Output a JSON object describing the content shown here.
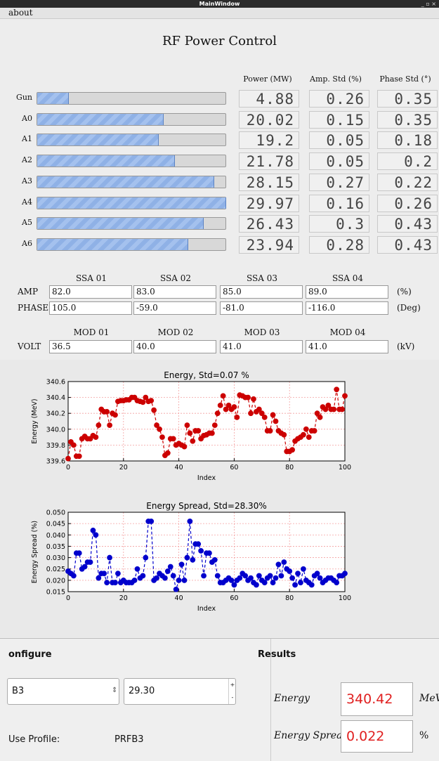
{
  "window": {
    "title": "MainWindow",
    "menu": [
      "about"
    ]
  },
  "header": {
    "title": "RF Power Control"
  },
  "power_table": {
    "columns": [
      "Power (MW)",
      "Amp. Std (%)",
      "Phase Std (°)"
    ],
    "progress_range": [
      0,
      30
    ],
    "rows": [
      {
        "name": "Gun",
        "power": 4.88,
        "amp_std": 0.26,
        "phase_std": 0.35
      },
      {
        "name": "A0",
        "power": 20.02,
        "amp_std": 0.15,
        "phase_std": 0.35
      },
      {
        "name": "A1",
        "power": 19.2,
        "amp_std": 0.05,
        "phase_std": 0.18
      },
      {
        "name": "A2",
        "power": 21.78,
        "amp_std": 0.05,
        "phase_std": 0.2
      },
      {
        "name": "A3",
        "power": 28.15,
        "amp_std": 0.27,
        "phase_std": 0.22
      },
      {
        "name": "A4",
        "power": 29.97,
        "amp_std": 0.16,
        "phase_std": 0.26
      },
      {
        "name": "A5",
        "power": 26.43,
        "amp_std": 0.3,
        "phase_std": 0.43
      },
      {
        "name": "A6",
        "power": 23.94,
        "amp_std": 0.28,
        "phase_std": 0.43
      }
    ]
  },
  "ssa": {
    "columns": [
      "SSA 01",
      "SSA 02",
      "SSA 03",
      "SSA 04"
    ],
    "rows": [
      {
        "label": "AMP",
        "values": [
          "82.0",
          "83.0",
          "85.0",
          "89.0"
        ],
        "unit": "(%)"
      },
      {
        "label": "PHASE",
        "values": [
          "105.0",
          "-59.0",
          "-81.0",
          "-116.0"
        ],
        "unit": "(Deg)"
      }
    ]
  },
  "mod": {
    "columns": [
      "MOD 01",
      "MOD 02",
      "MOD 03",
      "MOD 04"
    ],
    "rows": [
      {
        "label": "VOLT",
        "values": [
          "36.5",
          "40.0",
          "41.0",
          "41.0"
        ],
        "unit": "(kV)"
      }
    ]
  },
  "chart_data": [
    {
      "type": "line",
      "title": "Energy, Std=0.07 %",
      "xlabel": "Index",
      "ylabel": "Energy (MeV)",
      "color": "#cc0000",
      "grid": true,
      "xlim": [
        0,
        100
      ],
      "xticks": [
        0,
        20,
        40,
        60,
        80,
        100
      ],
      "ylim": [
        339.6,
        340.6
      ],
      "yticks": [
        339.6,
        339.8,
        {
          "value": 340.0,
          "label": "340.0"
        },
        340.2,
        340.4,
        340.6
      ],
      "values": [
        339.63,
        339.84,
        339.8,
        339.66,
        339.66,
        339.88,
        339.91,
        339.88,
        339.88,
        339.92,
        339.9,
        340.05,
        340.25,
        340.22,
        340.22,
        340.05,
        340.2,
        340.18,
        340.35,
        340.36,
        340.36,
        340.37,
        340.37,
        340.4,
        340.4,
        340.36,
        340.35,
        340.34,
        340.4,
        340.35,
        340.36,
        340.24,
        340.05,
        340.0,
        339.9,
        339.67,
        339.7,
        339.88,
        339.88,
        339.8,
        339.82,
        339.8,
        339.78,
        340.05,
        339.95,
        339.85,
        339.98,
        339.98,
        339.88,
        339.92,
        339.93,
        339.95,
        339.95,
        340.05,
        340.2,
        340.3,
        340.42,
        340.25,
        340.3,
        340.25,
        340.28,
        340.15,
        340.43,
        340.42,
        340.4,
        340.4,
        340.2,
        340.38,
        340.22,
        340.25,
        340.2,
        340.15,
        339.98,
        339.98,
        340.18,
        340.1,
        339.98,
        339.95,
        339.93,
        339.72,
        339.72,
        339.74,
        339.85,
        339.88,
        339.9,
        339.93,
        340.0,
        339.9,
        339.98,
        339.98,
        340.2,
        340.15,
        340.28,
        340.25,
        340.3,
        340.25,
        340.25,
        340.5,
        340.25,
        340.25,
        340.42
      ]
    },
    {
      "type": "line",
      "title": "Energy Spread, Std=28.30%",
      "xlabel": "Index",
      "ylabel": "Energy Spread (%)",
      "color": "#0000cc",
      "grid": true,
      "xlim": [
        0,
        100
      ],
      "xticks": [
        0,
        20,
        40,
        60,
        80,
        100
      ],
      "ylim": [
        0.015,
        0.05
      ],
      "yticks": [
        0.015,
        {
          "value": 0.02,
          "label": "0.020"
        },
        0.025,
        {
          "value": 0.03,
          "label": "0.030"
        },
        0.035,
        {
          "value": 0.04,
          "label": "0.040"
        },
        0.045,
        {
          "value": 0.05,
          "label": "0.050"
        }
      ],
      "values": [
        0.024,
        0.023,
        0.022,
        0.032,
        0.032,
        0.025,
        0.026,
        0.028,
        0.028,
        0.042,
        0.04,
        0.021,
        0.023,
        0.023,
        0.019,
        0.03,
        0.019,
        0.019,
        0.023,
        0.019,
        0.02,
        0.019,
        0.019,
        0.019,
        0.02,
        0.025,
        0.021,
        0.022,
        0.03,
        0.046,
        0.046,
        0.02,
        0.021,
        0.023,
        0.022,
        0.021,
        0.024,
        0.026,
        0.022,
        0.016,
        0.02,
        0.027,
        0.02,
        0.03,
        0.046,
        0.029,
        0.036,
        0.036,
        0.033,
        0.022,
        0.032,
        0.032,
        0.028,
        0.029,
        0.022,
        0.019,
        0.019,
        0.02,
        0.021,
        0.02,
        0.018,
        0.02,
        0.021,
        0.023,
        0.022,
        0.02,
        0.021,
        0.019,
        0.018,
        0.022,
        0.02,
        0.019,
        0.021,
        0.022,
        0.019,
        0.021,
        0.027,
        0.022,
        0.028,
        0.025,
        0.024,
        0.021,
        0.018,
        0.023,
        0.019,
        0.025,
        0.02,
        0.019,
        0.018,
        0.022,
        0.023,
        0.021,
        0.019,
        0.02,
        0.021,
        0.021,
        0.02,
        0.019,
        0.022,
        0.022,
        0.023
      ]
    }
  ],
  "configure": {
    "title": "onfigure",
    "profile_select": "B3",
    "value": "29.30",
    "profile_label": "Use Profile:",
    "profile": "PRFB3"
  },
  "results": {
    "title": "Results",
    "rows": [
      {
        "label": "Energy",
        "value": 340.42,
        "unit": "MeV"
      },
      {
        "label": "Energy Spread",
        "value": 0.022,
        "unit": "%"
      }
    ]
  }
}
